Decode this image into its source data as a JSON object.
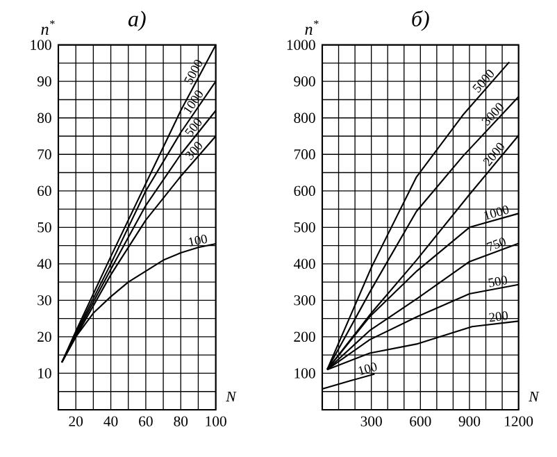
{
  "chart_data": [
    {
      "type": "line",
      "title": "а)",
      "xlabel": "N",
      "ylabel": "n$^{*}$",
      "xlim": [
        10,
        100
      ],
      "ylim": [
        0,
        100
      ],
      "grid": true,
      "marker": "none",
      "line_style": "solid",
      "xticks": [
        20,
        {
          "value": 30,
          "label": null
        },
        40,
        {
          "value": 50,
          "label": null
        },
        60,
        {
          "value": 70,
          "label": null
        },
        80,
        {
          "value": 90,
          "label": null
        },
        100
      ],
      "yticks": [
        {
          "value": 5,
          "label": null
        },
        10,
        {
          "value": 15,
          "label": null
        },
        20,
        {
          "value": 25,
          "label": null
        },
        30,
        {
          "value": 35,
          "label": null
        },
        40,
        {
          "value": 45,
          "label": null
        },
        50,
        {
          "value": 55,
          "label": null
        },
        60,
        {
          "value": 65,
          "label": null
        },
        70,
        {
          "value": 75,
          "label": null
        },
        80,
        {
          "value": 85,
          "label": null
        },
        90,
        {
          "value": 95,
          "label": null
        },
        100
      ],
      "series": [
        {
          "name": "5000",
          "color": "#000000",
          "x": [
            12,
            20,
            40,
            60,
            80,
            100
          ],
          "values": [
            13,
            21.5,
            42,
            62,
            82,
            100
          ]
        },
        {
          "name": "1000",
          "color": "#000000",
          "x": [
            12,
            20,
            40,
            60,
            80,
            100
          ],
          "values": [
            13,
            21,
            40,
            60,
            76,
            90
          ]
        },
        {
          "name": "500",
          "color": "#000000",
          "x": [
            12,
            20,
            40,
            60,
            80,
            100
          ],
          "values": [
            13,
            20.5,
            38.5,
            56,
            70,
            82
          ]
        },
        {
          "name": "300",
          "color": "#000000",
          "x": [
            12,
            20,
            40,
            60,
            80,
            100
          ],
          "values": [
            13,
            20,
            37,
            52,
            64,
            75
          ]
        },
        {
          "name": "100",
          "color": "#000000",
          "x": [
            12,
            20,
            30,
            40,
            50,
            60,
            70,
            80,
            90,
            100
          ],
          "values": [
            13,
            20,
            26.5,
            31,
            35,
            38,
            41,
            43,
            44.5,
            45.5
          ]
        }
      ]
    },
    {
      "type": "line",
      "title": "б)",
      "xlabel": "N",
      "ylabel": "n$^{*}$",
      "xlim": [
        0,
        1200
      ],
      "ylim": [
        0,
        1000
      ],
      "grid": true,
      "marker": "none",
      "line_style": "solid",
      "xticks": [
        {
          "value": 100,
          "label": null
        },
        {
          "value": 200,
          "label": null
        },
        300,
        {
          "value": 400,
          "label": null
        },
        {
          "value": 500,
          "label": null
        },
        600,
        {
          "value": 700,
          "label": null
        },
        {
          "value": 800,
          "label": null
        },
        900,
        {
          "value": 1000,
          "label": null
        },
        {
          "value": 1100,
          "label": null
        },
        1200
      ],
      "yticks": [
        {
          "value": 50,
          "label": null
        },
        100,
        {
          "value": 150,
          "label": null
        },
        200,
        {
          "value": 250,
          "label": null
        },
        300,
        {
          "value": 350,
          "label": null
        },
        400,
        {
          "value": 450,
          "label": null
        },
        500,
        {
          "value": 550,
          "label": null
        },
        600,
        {
          "value": 650,
          "label": null
        },
        700,
        {
          "value": 750,
          "label": null
        },
        800,
        {
          "value": 850,
          "label": null
        },
        900,
        {
          "value": 950,
          "label": null
        },
        1000
      ],
      "series": [
        {
          "name": "5000",
          "color": "#000000",
          "x": [
            30,
            300,
            576,
            860,
            1143
          ],
          "values": [
            110,
            390,
            638,
            808,
            953
          ]
        },
        {
          "name": "3000",
          "color": "#000000",
          "x": [
            30,
            300,
            576,
            860,
            1200
          ],
          "values": [
            110,
            330,
            544,
            695,
            858
          ]
        },
        {
          "name": "2000",
          "color": "#000000",
          "x": [
            30,
            300,
            576,
            900,
            1200
          ],
          "values": [
            110,
            265,
            410,
            590,
            752
          ]
        },
        {
          "name": "1000",
          "color": "#000000",
          "x": [
            30,
            290,
            580,
            900,
            1200
          ],
          "values": [
            110,
            255,
            381,
            500,
            538
          ]
        },
        {
          "name": "750",
          "color": "#000000",
          "x": [
            30,
            290,
            580,
            900,
            1200
          ],
          "values": [
            110,
            217,
            305,
            406,
            456
          ]
        },
        {
          "name": "500",
          "color": "#000000",
          "x": [
            30,
            290,
            580,
            900,
            1200
          ],
          "values": [
            110,
            192,
            255,
            318,
            343
          ]
        },
        {
          "name": "200",
          "color": "#000000",
          "x": [
            30,
            290,
            576,
            916,
            1200
          ],
          "values": [
            110,
            155,
            180,
            228,
            243
          ]
        },
        {
          "name": "100",
          "color": "#000000",
          "x": [
            0,
            160,
            320
          ],
          "values": [
            57,
            78,
            98
          ]
        }
      ]
    }
  ]
}
